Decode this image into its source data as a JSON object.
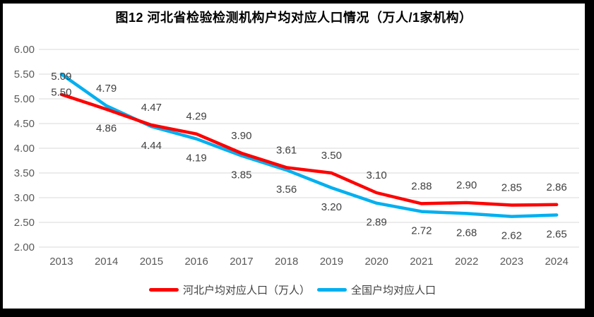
{
  "chart_data": {
    "type": "line",
    "title": "图12  河北省检验检测机构户均对应人口情况（万人/1家机构）",
    "categories": [
      "2013",
      "2014",
      "2015",
      "2016",
      "2017",
      "2018",
      "2019",
      "2020",
      "2021",
      "2022",
      "2023",
      "2024"
    ],
    "series": [
      {
        "id": "hebei",
        "name": "河北户均对应人口（万人）",
        "color": "#FE0000",
        "values": [
          5.09,
          4.79,
          4.47,
          4.29,
          3.9,
          3.61,
          3.5,
          3.1,
          2.88,
          2.9,
          2.85,
          2.86
        ]
      },
      {
        "id": "national",
        "name": "全国户均对应人口",
        "color": "#00B0F0",
        "values": [
          5.5,
          4.86,
          4.44,
          4.19,
          3.85,
          3.56,
          3.2,
          2.89,
          2.72,
          2.68,
          2.62,
          2.65
        ]
      }
    ],
    "ylim": [
      2.0,
      6.0
    ],
    "ytick_step": 0.5,
    "ytick_labels": [
      "6.00",
      "5.50",
      "5.00",
      "4.50",
      "4.00",
      "3.50",
      "3.00",
      "2.50",
      "2.00"
    ],
    "grid": true,
    "legend_position": "bottom",
    "label_decimals": 2,
    "colors": {
      "grid": "#D9D9D9",
      "axis_text": "#595959",
      "label_text": "#404040"
    }
  }
}
